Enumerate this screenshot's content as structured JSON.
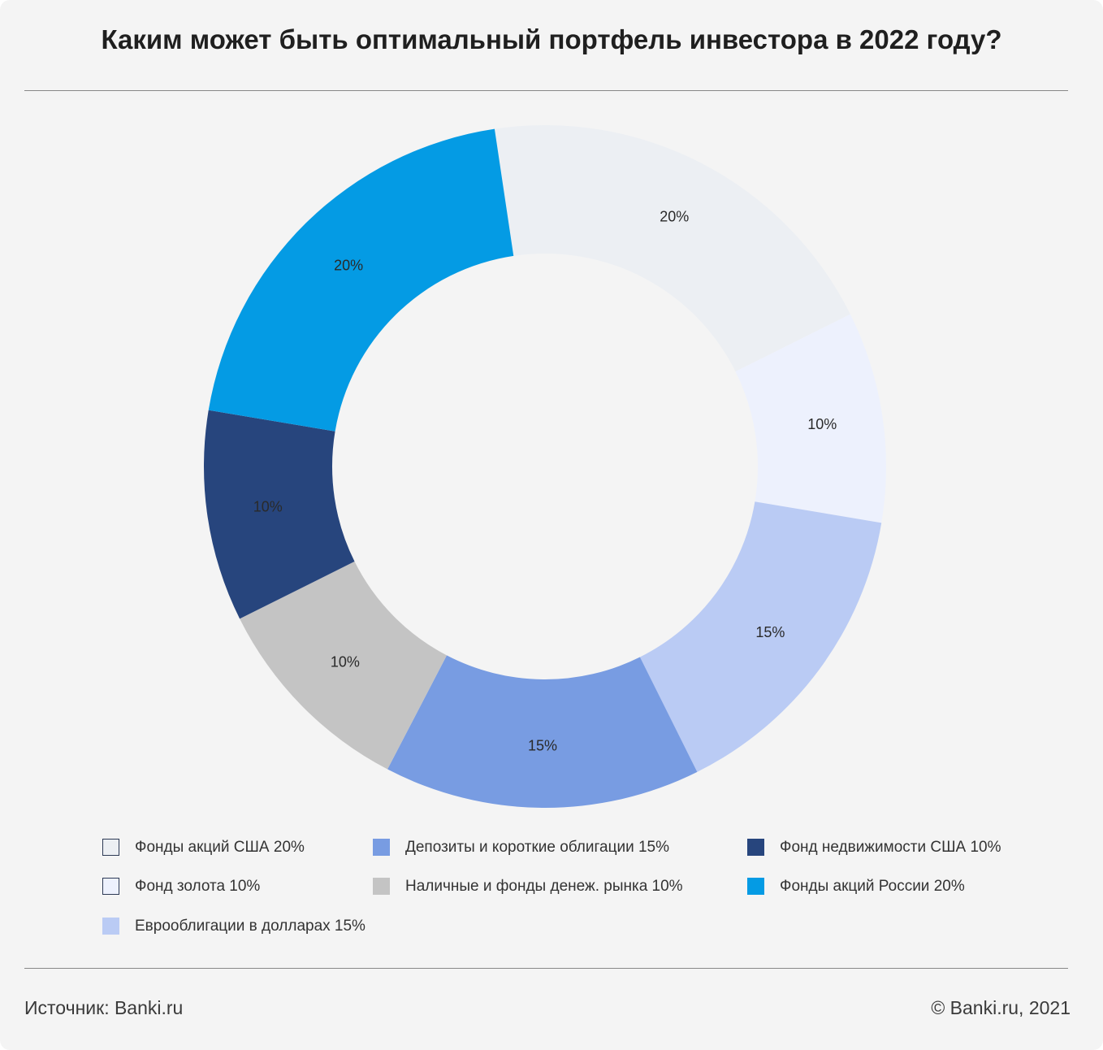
{
  "title": "Каким может быть оптимальный портфель инвестора в 2022 году?",
  "footer": {
    "source": "Источник: Banki.ru",
    "copyright": "© Banki.ru, 2021"
  },
  "chart_data": {
    "type": "pie",
    "donut": true,
    "title": "Каким может быть оптимальный портфель инвестора в 2022 году?",
    "unit": "%",
    "legend_position": "bottom",
    "slices": [
      {
        "name": "Фонды акций США",
        "value": 20,
        "label": "20%",
        "color": "#eceff3",
        "border": true
      },
      {
        "name": "Фонд золота",
        "value": 10,
        "label": "10%",
        "color": "#edf1fd",
        "border": true
      },
      {
        "name": "Еврооблигации в долларах",
        "value": 15,
        "label": "15%",
        "color": "#bacbf4",
        "border": false
      },
      {
        "name": "Депозиты и короткие облигации",
        "value": 15,
        "label": "15%",
        "color": "#789ce2",
        "border": false
      },
      {
        "name": "Наличные и фонды денеж. рынка",
        "value": 10,
        "label": "10%",
        "color": "#c4c4c4",
        "border": false
      },
      {
        "name": "Фонд недвижимости США",
        "value": 10,
        "label": "10%",
        "color": "#27457d",
        "border": false
      },
      {
        "name": "Фонды акций России",
        "value": 20,
        "label": "20%",
        "color": "#049be4",
        "border": false
      }
    ],
    "legend": [
      {
        "label": "Фонды акций США 20%",
        "color": "#eceff3"
      },
      {
        "label": "Депозиты и короткие облигации 15%",
        "color": "#789ce2"
      },
      {
        "label": "Фонд недвижимости США 10%",
        "color": "#27457d"
      },
      {
        "label": "Фонд золота 10%",
        "color": "#edf1fd"
      },
      {
        "label": "Наличные и фонды денеж. рынка 10%",
        "color": "#c4c4c4"
      },
      {
        "label": "Фонды акций России 20%",
        "color": "#049be4"
      },
      {
        "label": "Еврооблигации в долларах 15%",
        "color": "#bacbf4"
      }
    ]
  }
}
